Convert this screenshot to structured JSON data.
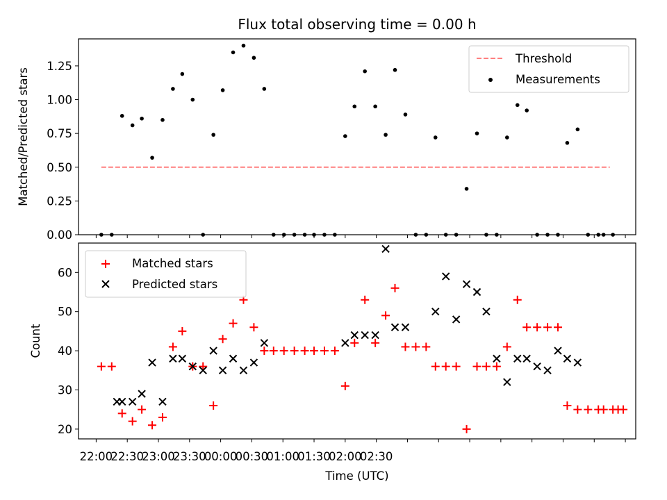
{
  "chart_data": [
    {
      "type": "scatter",
      "title": "Flux total observing time = 0.00 h",
      "xlabel": "",
      "ylabel": "Matched/Predicted stars",
      "xlim": [
        1303,
        1840
      ],
      "ylim": [
        0,
        1.45
      ],
      "yticks": [
        0,
        0.25,
        0.5,
        0.75,
        1.0,
        1.25
      ],
      "ytick_labels": [
        "0.00",
        "0.25",
        "0.50",
        "0.75",
        "1.00",
        "1.25"
      ],
      "legend_position": "upper right",
      "threshold": {
        "name": "Threshold",
        "value": 0.5,
        "x": [
          1325,
          1815
        ],
        "color": "#ff7f7f",
        "style": "dashed"
      },
      "series": [
        {
          "name": "Measurements",
          "color": "#000000",
          "marker": "dot",
          "x": [
            1325,
            1335,
            1345,
            1355,
            1364,
            1374,
            1384,
            1394,
            1403,
            1413,
            1423,
            1433,
            1442,
            1452,
            1462,
            1472,
            1482,
            1491,
            1501,
            1511,
            1521,
            1530,
            1540,
            1550,
            1560,
            1569,
            1579,
            1589,
            1599,
            1608,
            1618,
            1628,
            1638,
            1647,
            1657,
            1667,
            1677,
            1687,
            1696,
            1706,
            1716,
            1726,
            1735,
            1745,
            1755,
            1765,
            1774,
            1784,
            1794,
            1804,
            1809,
            1818
          ],
          "y": [
            0.0,
            0.0,
            0.88,
            0.81,
            0.86,
            0.57,
            0.85,
            1.08,
            1.19,
            1.0,
            0.0,
            0.74,
            1.07,
            1.35,
            1.4,
            1.31,
            1.08,
            0.0,
            0.0,
            0.0,
            0.0,
            0.0,
            0.0,
            0.0,
            0.73,
            0.95,
            1.21,
            0.95,
            0.74,
            1.22,
            0.89,
            0.0,
            0.0,
            0.72,
            0.0,
            0.0,
            0.34,
            0.75,
            0.0,
            0.0,
            0.72,
            0.96,
            0.92,
            0.0,
            0.0,
            0.0,
            0.68,
            0.78,
            0.0,
            0.0,
            0.0,
            0.0
          ]
        }
      ]
    },
    {
      "type": "scatter",
      "title": "",
      "xlabel": "Time (UTC)",
      "ylabel": "Count",
      "xlim": [
        1303,
        1840
      ],
      "ylim": [
        17.5,
        67.5
      ],
      "yticks": [
        20,
        30,
        40,
        50,
        60
      ],
      "xticks": [
        1320,
        1350,
        1380,
        1410,
        1440,
        1470,
        1500,
        1530,
        1560,
        1590,
        1620,
        1650,
        1680,
        1710,
        1740,
        1770,
        1800,
        1830
      ],
      "xtick_labels": [
        "22:00",
        "22:30",
        "23:00",
        "23:30",
        "00:00",
        "00:30",
        "01:00",
        "01:30",
        "02:00",
        "02:30"
      ],
      "xtick_label_minutes": [
        1320,
        1350,
        1380,
        1410,
        1440,
        1470,
        1500,
        1530,
        1560,
        1590
      ],
      "legend_position": "upper left",
      "series": [
        {
          "name": "Matched stars",
          "color": "#ff0000",
          "marker": "plus",
          "x": [
            1325,
            1335,
            1345,
            1355,
            1364,
            1374,
            1384,
            1394,
            1403,
            1413,
            1423,
            1433,
            1442,
            1452,
            1462,
            1472,
            1482,
            1491,
            1501,
            1511,
            1521,
            1530,
            1540,
            1550,
            1560,
            1569,
            1579,
            1589,
            1599,
            1608,
            1618,
            1628,
            1638,
            1647,
            1657,
            1667,
            1677,
            1687,
            1696,
            1706,
            1716,
            1726,
            1735,
            1745,
            1755,
            1765,
            1774,
            1784,
            1794,
            1804,
            1809,
            1818,
            1823,
            1828
          ],
          "y": [
            36,
            36,
            24,
            22,
            25,
            21,
            23,
            41,
            45,
            36,
            36,
            26,
            43,
            47,
            53,
            46,
            40,
            40,
            40,
            40,
            40,
            40,
            40,
            40,
            31,
            42,
            53,
            42,
            49,
            56,
            41,
            41,
            41,
            36,
            36,
            36,
            20,
            36,
            36,
            36,
            41,
            53,
            46,
            46,
            46,
            46,
            26,
            25,
            25,
            25,
            25,
            25,
            25,
            25
          ]
        },
        {
          "name": "Predicted stars",
          "color": "#000000",
          "marker": "x",
          "x": [
            1340,
            1345,
            1355,
            1364,
            1374,
            1384,
            1394,
            1403,
            1413,
            1423,
            1433,
            1442,
            1452,
            1462,
            1472,
            1482,
            1560,
            1569,
            1579,
            1589,
            1599,
            1608,
            1618,
            1647,
            1657,
            1667,
            1677,
            1687,
            1696,
            1706,
            1716,
            1726,
            1735,
            1745,
            1755,
            1765,
            1774,
            1784
          ],
          "y": [
            27,
            27,
            27,
            29,
            37,
            27,
            38,
            38,
            36,
            35,
            40,
            35,
            38,
            35,
            37,
            42,
            42,
            44,
            44,
            44,
            66,
            46,
            46,
            50,
            59,
            48,
            57,
            55,
            50,
            38,
            32,
            38,
            38,
            36,
            35,
            40,
            38,
            37
          ]
        }
      ]
    }
  ]
}
